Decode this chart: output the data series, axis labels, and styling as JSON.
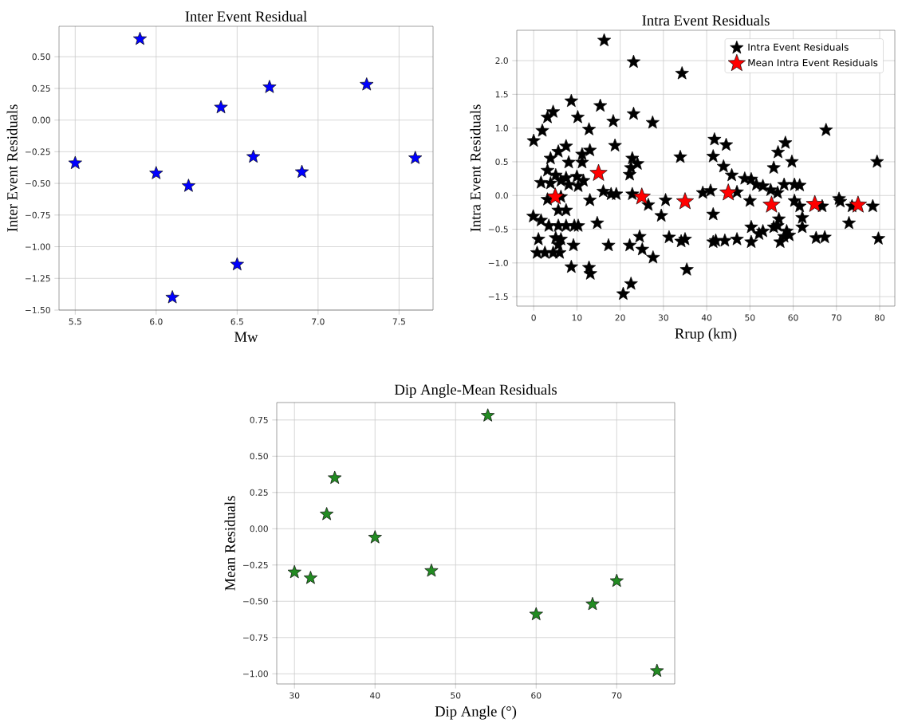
{
  "chart_data": [
    {
      "type": "scatter",
      "title": "Inter Event Residual",
      "xlabel": "Mw",
      "ylabel": "Inter Event Residuals",
      "color": "#0000ff",
      "marker": "star",
      "grid": true,
      "x": [
        5.5,
        5.9,
        6.0,
        6.1,
        6.2,
        6.4,
        6.5,
        6.6,
        6.7,
        6.9,
        7.3,
        7.6
      ],
      "values": [
        -0.34,
        0.64,
        -0.42,
        -1.4,
        -0.52,
        0.1,
        -1.14,
        -0.29,
        0.26,
        -0.41,
        0.28,
        -0.3
      ],
      "xlim": [
        5.4,
        7.71
      ],
      "ylim": [
        -1.5,
        0.74
      ],
      "xticks": [
        5.5,
        {
          "value": 6,
          "label": "6.0"
        },
        6.5,
        {
          "value": 7,
          "label": "7.0"
        },
        7.5
      ],
      "yticks": [
        {
          "value": -1.5,
          "label": "−1.50"
        },
        {
          "value": -1.25,
          "label": "−1.25"
        },
        {
          "value": -1,
          "label": "−1.00"
        },
        {
          "value": -0.75,
          "label": "−0.75"
        },
        {
          "value": -0.5,
          "label": "−0.50"
        },
        {
          "value": -0.25,
          "label": "−0.25"
        },
        {
          "value": 0,
          "label": "0.00"
        },
        {
          "value": 0.25,
          "label": "0.25"
        },
        {
          "value": 0.5,
          "label": "0.50"
        }
      ]
    },
    {
      "type": "scatter",
      "title": "Intra Event Residuals",
      "xlabel": "Rrup (km)",
      "ylabel": "Intra Event Residuals",
      "marker": "star",
      "grid": true,
      "legend": "top right",
      "series": [
        {
          "name": "Intra Event Residuals",
          "color": "#000000",
          "x": [
            16.3,
            23.1,
            34.3,
            8.7,
            15.4,
            4.5,
            3.2,
            10.2,
            23.1,
            18.4,
            27.5,
            12.8,
            2.0,
            0,
            18.8,
            7.5,
            5.7,
            13.0,
            11.2,
            3.9,
            8.1,
            11.2,
            22.8,
            33.9,
            24.0,
            22.5,
            22.2,
            3.2,
            5.1,
            7.5,
            10.0,
            11.5,
            1.7,
            3.9,
            8.1,
            10.3,
            6.3,
            16.1,
            17.9,
            19.1,
            22.8,
            13.0,
            26.5,
            30.5,
            3.2,
            6.3,
            7.5,
            5.7,
            29.5,
            14.7,
            -0.1,
            1.7,
            3.5,
            5.7,
            7.5,
            9.4,
            10.3,
            1.1,
            5.1,
            6.3,
            9.2,
            0.8,
            2.6,
            4.5,
            6.0,
            5.7,
            17.3,
            22.2,
            24.5,
            25.1,
            27.6,
            31.3,
            34.1,
            35.0,
            8.7,
            12.8,
            13.1,
            35.4,
            22.5,
            20.7,
            41.8,
            44.5,
            41.5,
            43.9,
            45.8,
            55.5,
            56.5,
            58.2,
            59.7,
            67.6,
            79.4,
            48.8,
            50.3,
            51.5,
            53.0,
            54.8,
            56.4,
            57.9,
            60.3,
            61.5,
            39.1,
            40.9,
            47.0,
            50.0,
            60.3,
            61.5,
            66.7,
            70.6,
            70.9,
            73.6,
            78.4,
            41.5,
            56.7,
            56.4,
            62.1,
            62.1,
            72.9,
            50.3,
            53.0,
            52.1,
            55.5,
            58.5,
            57.9,
            59.1,
            41.5,
            42.1,
            44.2,
            47.0,
            50.3,
            57.0,
            65.3,
            67.3,
            79.7
          ],
          "values": [
            2.3,
            1.98,
            1.81,
            1.4,
            1.33,
            1.24,
            1.16,
            1.16,
            1.21,
            1.1,
            1.08,
            0.98,
            0.96,
            0.81,
            0.74,
            0.73,
            0.65,
            0.67,
            0.61,
            0.55,
            0.49,
            0.49,
            0.55,
            0.57,
            0.47,
            0.41,
            0.31,
            0.37,
            0.3,
            0.26,
            0.28,
            0.22,
            0.19,
            0.18,
            0.16,
            0.14,
            0.22,
            0.06,
            0.02,
            0.02,
            0.02,
            -0.07,
            -0.14,
            -0.07,
            -0.06,
            -0.02,
            -0.22,
            -0.22,
            -0.3,
            -0.41,
            -0.31,
            -0.37,
            -0.45,
            -0.45,
            -0.45,
            -0.45,
            -0.45,
            -0.65,
            -0.63,
            -0.65,
            -0.74,
            -0.85,
            -0.85,
            -0.85,
            -0.85,
            -0.73,
            -0.74,
            -0.74,
            -0.61,
            -0.8,
            -0.92,
            -0.62,
            -0.68,
            -0.65,
            -1.06,
            -1.07,
            -1.16,
            -1.1,
            -1.31,
            -1.46,
            0.83,
            0.75,
            0.58,
            0.43,
            0.3,
            0.41,
            0.64,
            0.78,
            0.5,
            0.97,
            0.5,
            0.25,
            0.24,
            0.16,
            0.14,
            0.08,
            0.04,
            0.16,
            0.16,
            0.15,
            0.04,
            0.07,
            0.05,
            -0.08,
            -0.08,
            -0.16,
            -0.16,
            -0.05,
            -0.09,
            -0.16,
            -0.16,
            -0.28,
            -0.35,
            -0.45,
            -0.33,
            -0.47,
            -0.41,
            -0.47,
            -0.53,
            -0.57,
            -0.47,
            -0.53,
            -0.61,
            -0.59,
            -0.69,
            -0.67,
            -0.67,
            -0.65,
            -0.69,
            -0.69,
            -0.63,
            -0.62,
            -0.64
          ]
        },
        {
          "name": "Mean Intra Event Residuals",
          "color": "#ff0000",
          "x": [
            5,
            15,
            25,
            35,
            45,
            55,
            65,
            75
          ],
          "values": [
            -0.02,
            0.33,
            -0.02,
            -0.09,
            0.04,
            -0.14,
            -0.13,
            -0.14
          ]
        }
      ],
      "xlim": [
        -3.9,
        83.5
      ],
      "ylim": [
        -1.64,
        2.45
      ],
      "xticks": [
        0,
        10,
        20,
        30,
        40,
        50,
        60,
        70,
        80
      ],
      "yticks": [
        {
          "value": -1.5,
          "label": "−1.5"
        },
        {
          "value": -1,
          "label": "−1.0"
        },
        {
          "value": -0.5,
          "label": "−0.5"
        },
        {
          "value": 0,
          "label": "0.0"
        },
        0.5,
        {
          "value": 1,
          "label": "1.0"
        },
        1.5,
        {
          "value": 2,
          "label": "2.0"
        }
      ]
    },
    {
      "type": "scatter",
      "title": "Dip Angle-Mean Residuals",
      "xlabel": "Dip Angle (°)",
      "ylabel": "Mean Residuals",
      "color": "#228b22",
      "marker": "star",
      "grid": true,
      "x": [
        30,
        32,
        34,
        35,
        40,
        47,
        54,
        60,
        67,
        70,
        75
      ],
      "values": [
        -0.3,
        -0.34,
        0.1,
        0.35,
        -0.06,
        -0.29,
        0.78,
        -0.59,
        -0.52,
        -0.36,
        -0.98
      ],
      "xlim": [
        27.8,
        77.2
      ],
      "ylim": [
        -1.07,
        0.87
      ],
      "xticks": [
        30,
        40,
        50,
        60,
        70
      ],
      "yticks": [
        {
          "value": -1,
          "label": "−1.00"
        },
        {
          "value": -0.75,
          "label": "−0.75"
        },
        {
          "value": -0.5,
          "label": "−0.50"
        },
        {
          "value": -0.25,
          "label": "−0.25"
        },
        {
          "value": 0,
          "label": "0.00"
        },
        0.25,
        {
          "value": 0.5,
          "label": "0.50"
        },
        0.75
      ]
    }
  ]
}
